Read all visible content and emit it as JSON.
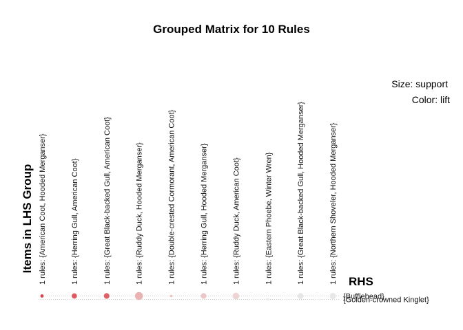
{
  "chart_data": {
    "type": "scatter",
    "title": "Grouped Matrix for 10 Rules",
    "ylabel": "Items in LHS Group",
    "rhs_title": "RHS",
    "legend": {
      "size": "Size: support",
      "color": "Color: lift"
    },
    "columns": [
      "1 rules: {American Coot, Hooded Merganser}",
      "1 rules: {Herring Gull, American Coot}",
      "1 rules: {Great Black-backed Gull, American Coot}",
      "1 rules: {Ruddy Duck, Hooded Merganser}",
      "1 rules: {Double-crested Cormorant, American Coot}",
      "1 rules: {Herring Gull, Hooded Merganser}",
      "1 rules: {Ruddy Duck, American Coot}",
      "1 rules: {Eastern Phoebe, Winter Wren}",
      "1 rules: {Great Black-backed Gull, Hooded Merganser}",
      "1 rules: {Northern Shoveler, Hooded Merganser}"
    ],
    "rhs": [
      "{Bufflehead}",
      "{Golden-crowned Kinglet}"
    ],
    "points": [
      {
        "col": 0,
        "rhs": 0,
        "support": 0.25,
        "lift": 1.0,
        "color": "#d9434b"
      },
      {
        "col": 1,
        "rhs": 0,
        "support": 0.55,
        "lift": 0.95,
        "color": "#dd5a60"
      },
      {
        "col": 2,
        "rhs": 0,
        "support": 0.6,
        "lift": 0.9,
        "color": "#df6166"
      },
      {
        "col": 3,
        "rhs": 0,
        "support": 0.95,
        "lift": 0.6,
        "color": "#e9b2b3"
      },
      {
        "col": 4,
        "rhs": 0,
        "support": 0.15,
        "lift": 0.5,
        "color": "#ecc3c4"
      },
      {
        "col": 5,
        "rhs": 0,
        "support": 0.6,
        "lift": 0.5,
        "color": "#ecc6c7"
      },
      {
        "col": 6,
        "rhs": 0,
        "support": 0.75,
        "lift": 0.4,
        "color": "#eed3d3"
      },
      {
        "col": 7,
        "rhs": 1,
        "support": 0.15,
        "lift": 0.3,
        "color": "#ececec"
      },
      {
        "col": 8,
        "rhs": 0,
        "support": 0.65,
        "lift": 0.1,
        "color": "#e6e6e6"
      },
      {
        "col": 9,
        "rhs": 0,
        "support": 0.7,
        "lift": 0.05,
        "color": "#e8e8e8"
      }
    ]
  }
}
